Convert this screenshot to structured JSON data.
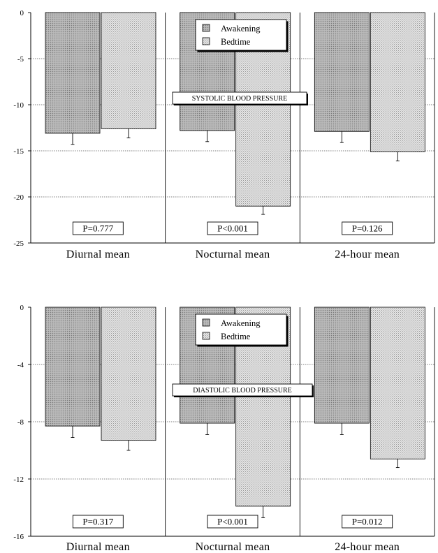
{
  "chart_data": [
    {
      "type": "bar",
      "title": "",
      "panel_label": "SYSTOLIC BLOOD PRESSURE",
      "xlabel": "",
      "ylabel": "",
      "categories": [
        "Diurnal mean",
        "Nocturnal mean",
        "24-hour mean"
      ],
      "series": [
        {
          "name": "Awakening",
          "values": [
            -13.1,
            -12.8,
            -12.9
          ],
          "errors": [
            1.2,
            1.2,
            1.2
          ],
          "pattern": "dense",
          "color": "#b8b8b8"
        },
        {
          "name": "Bedtime",
          "values": [
            -12.6,
            -21.0,
            -15.1
          ],
          "errors": [
            1.0,
            0.9,
            1.0
          ],
          "pattern": "light",
          "color": "#d9d9d9"
        }
      ],
      "p_values": [
        "P=0.777",
        "P<0.001",
        "P=0.126"
      ],
      "ylim": [
        -25,
        0
      ],
      "yticks": [
        0,
        -5,
        -10,
        -15,
        -20,
        -25
      ],
      "ytick_labels": [
        "0",
        "-5",
        "-10",
        "-15",
        "-20",
        "-25"
      ],
      "grid": "horizontal, dotted",
      "legend_position": "top-center"
    },
    {
      "type": "bar",
      "title": "",
      "panel_label": "DIASTOLIC BLOOD PRESSURE",
      "xlabel": "",
      "ylabel": "",
      "categories": [
        "Diurnal mean",
        "Nocturnal mean",
        "24-hour mean"
      ],
      "series": [
        {
          "name": "Awakening",
          "values": [
            -8.3,
            -8.1,
            -8.1
          ],
          "errors": [
            0.8,
            0.8,
            0.8
          ],
          "pattern": "dense",
          "color": "#b8b8b8"
        },
        {
          "name": "Bedtime",
          "values": [
            -9.3,
            -13.9,
            -10.6
          ],
          "errors": [
            0.7,
            0.8,
            0.6
          ],
          "pattern": "light",
          "color": "#d9d9d9"
        }
      ],
      "p_values": [
        "P=0.317",
        "P<0.001",
        "P=0.012"
      ],
      "ylim": [
        -16,
        0
      ],
      "yticks": [
        0,
        -4,
        -8,
        -12,
        -16
      ],
      "ytick_labels": [
        "0",
        "-4",
        "-8",
        "-12",
        "-16"
      ],
      "grid": "horizontal, dotted",
      "legend_position": "top-center"
    }
  ]
}
